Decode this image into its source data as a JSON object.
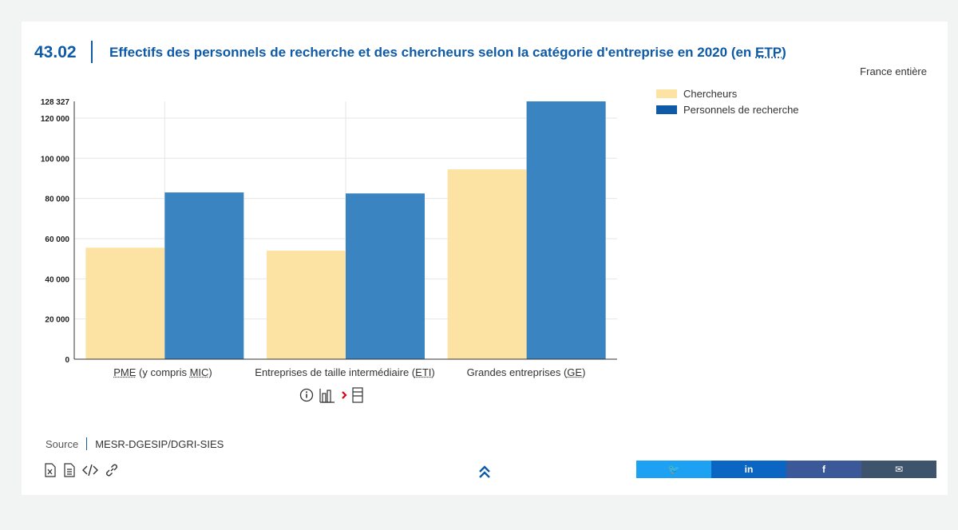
{
  "header": {
    "code": "43.02",
    "title_main": "Effectifs des personnels de recherche et des chercheurs selon la catégorie d'entreprise en 2020 (en ",
    "title_abbr": "ETP",
    "title_end": ")",
    "scope": "France entière"
  },
  "legend": [
    {
      "label": "Chercheurs",
      "color": "#fde3a3"
    },
    {
      "label": "Personnels de recherche",
      "color": "#0e5aa7"
    }
  ],
  "chart_data": {
    "type": "bar",
    "categories": [
      "PME (y compris MIC)",
      "Entreprises de taille intermédiaire (ETI)",
      "Grandes entreprises (GE)"
    ],
    "series": [
      {
        "name": "Chercheurs",
        "values": [
          55500,
          54000,
          94500
        ],
        "color": "#fde3a3"
      },
      {
        "name": "Personnels de recherche",
        "values": [
          83000,
          82500,
          128327
        ],
        "color": "#3a84c1"
      }
    ],
    "ylim": [
      0,
      128327
    ],
    "yticks": [
      0,
      20000,
      40000,
      60000,
      80000,
      100000,
      120000,
      128327
    ],
    "ytick_labels": [
      "0",
      "20 000",
      "40 000",
      "60 000",
      "80 000",
      "100 000",
      "120 000",
      "128 327"
    ],
    "grid": true,
    "legend_position": "top-right"
  },
  "source": {
    "label": "Source",
    "value": "MESR-DGESIP/DGRI-SIES"
  },
  "icons": {
    "info": "info-icon",
    "bar_chart": "bar-chart-icon",
    "table": "table-icon",
    "excel": "excel-file-icon",
    "document": "document-icon",
    "embed": "embed-code-icon",
    "link": "link-icon",
    "scroll_top": "double-chevron-up-icon"
  },
  "share": [
    {
      "name": "twitter",
      "glyph": "🐦",
      "color": "#1da1f2"
    },
    {
      "name": "linkedin",
      "glyph": "in",
      "color": "#0a66c2"
    },
    {
      "name": "facebook",
      "glyph": "f",
      "color": "#3b5998"
    },
    {
      "name": "email",
      "glyph": "✉",
      "color": "#3d546c"
    }
  ]
}
